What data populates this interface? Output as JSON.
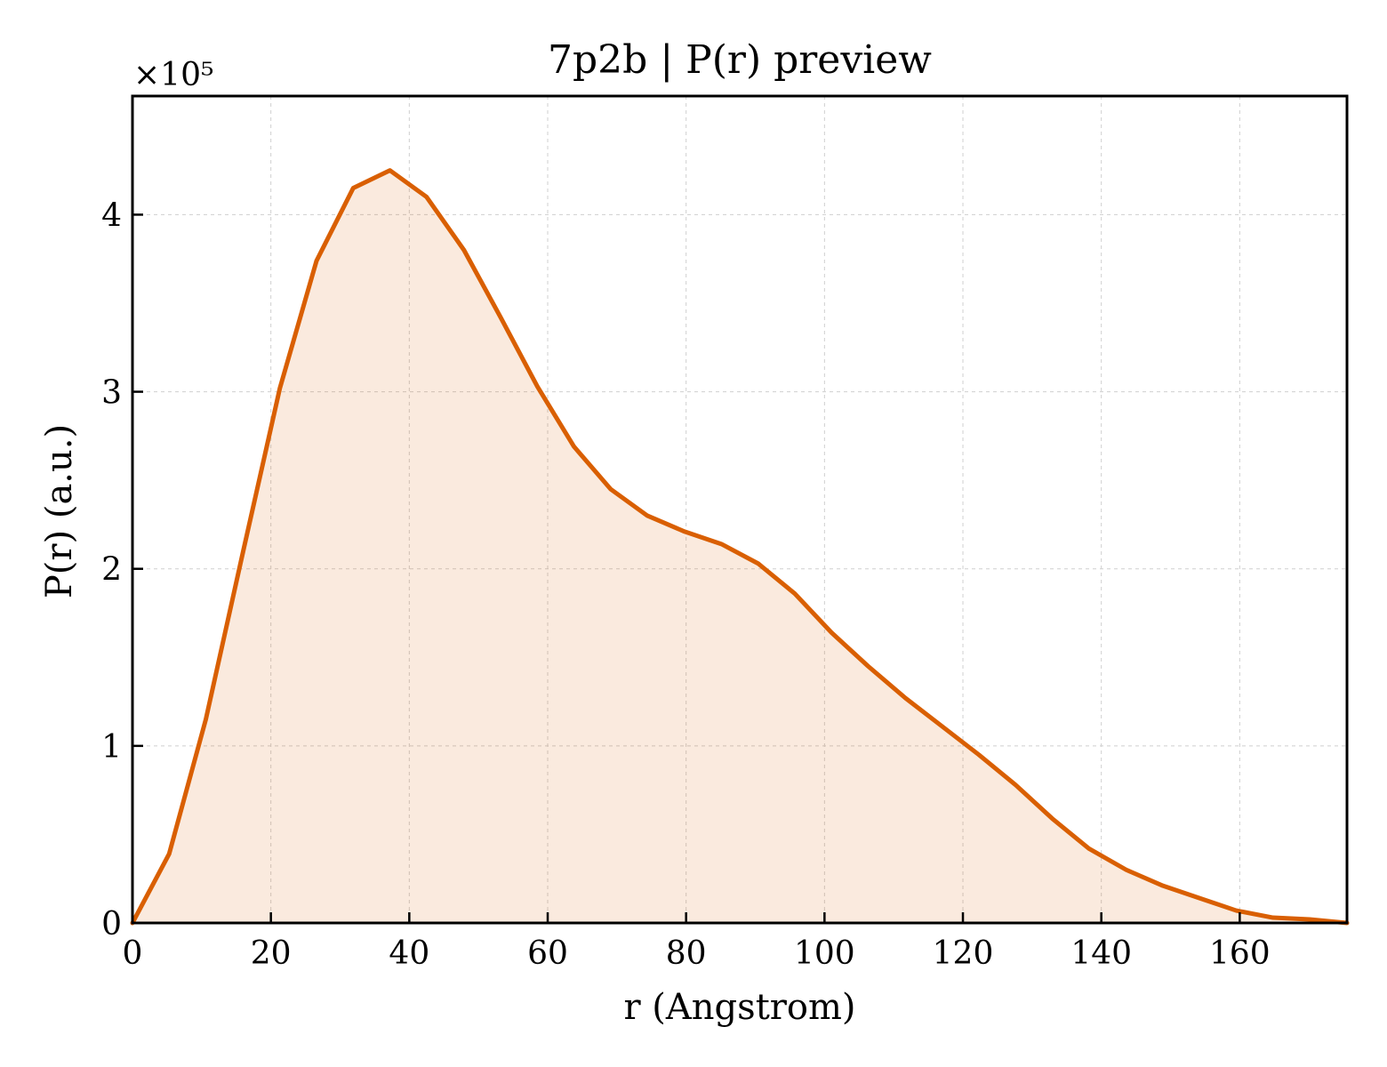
{
  "chart_data": {
    "type": "area",
    "title": "7p2b | P(r) preview",
    "xlabel": "r (Angstrom)",
    "ylabel": "P(r) (a.u.)",
    "y_multiplier_label": "×10⁵",
    "y_scale_factor": 100000,
    "xlim": [
      0,
      175.5
    ],
    "ylim": [
      0,
      4.67
    ],
    "x_ticks": [
      0,
      20,
      40,
      60,
      80,
      100,
      120,
      140,
      160
    ],
    "x_tick_labels": [
      "0",
      "20",
      "40",
      "60",
      "80",
      "100",
      "120",
      "140",
      "160"
    ],
    "y_ticks": [
      0,
      1,
      2,
      3,
      4
    ],
    "y_tick_labels": [
      "0",
      "1",
      "2",
      "3",
      "4"
    ],
    "grid": true,
    "legend": "none",
    "line_color": "#d95f02",
    "fill_color": "#d95f02",
    "fill_opacity": 0.13,
    "series": [
      {
        "x": [
          0,
          5.3,
          10.6,
          16.0,
          21.3,
          26.6,
          31.9,
          37.2,
          42.5,
          47.9,
          53.2,
          58.5,
          63.8,
          69.1,
          74.4,
          79.8,
          85.1,
          90.4,
          95.7,
          101.0,
          106.3,
          111.7,
          117.0,
          122.3,
          127.6,
          132.9,
          138.2,
          143.6,
          148.9,
          154.2,
          159.5,
          164.8,
          170.1,
          175.5
        ],
        "y": [
          0.0,
          0.39,
          1.15,
          2.1,
          3.02,
          3.74,
          4.15,
          4.25,
          4.1,
          3.8,
          3.42,
          3.03,
          2.69,
          2.45,
          2.3,
          2.21,
          2.14,
          2.03,
          1.86,
          1.64,
          1.45,
          1.27,
          1.11,
          0.95,
          0.78,
          0.59,
          0.42,
          0.3,
          0.21,
          0.14,
          0.07,
          0.03,
          0.02,
          0.0
        ]
      }
    ]
  }
}
